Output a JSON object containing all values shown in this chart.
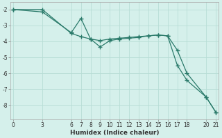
{
  "xlabel": "Humidex (Indice chaleur)",
  "bg_color": "#d5f0eb",
  "line_color": "#2a7a6a",
  "grid_color": "#b8ddd6",
  "line1_x": [
    0,
    3,
    6,
    7,
    8,
    9,
    10,
    11,
    12,
    13,
    14,
    15,
    16,
    17,
    18,
    20,
    21
  ],
  "line1_y": [
    -2.0,
    -2.0,
    -3.5,
    -3.7,
    -3.85,
    -3.95,
    -3.85,
    -3.8,
    -3.75,
    -3.7,
    -3.65,
    -3.6,
    -3.65,
    -4.55,
    -6.0,
    -7.5,
    -8.45
  ],
  "line2_x": [
    0,
    3,
    6,
    7,
    8,
    9,
    10,
    11,
    12,
    13,
    14,
    15,
    16,
    17,
    18,
    20,
    21
  ],
  "line2_y": [
    -2.0,
    -2.15,
    -3.45,
    -2.55,
    -3.85,
    -4.35,
    -3.95,
    -3.85,
    -3.8,
    -3.75,
    -3.65,
    -3.6,
    -3.65,
    -5.5,
    -6.45,
    -7.5,
    -8.45
  ],
  "xlim": [
    -0.3,
    21.3
  ],
  "ylim": [
    -8.9,
    -1.55
  ],
  "yticks": [
    -2,
    -3,
    -4,
    -5,
    -6,
    -7,
    -8
  ],
  "xticks": [
    0,
    3,
    6,
    7,
    8,
    9,
    10,
    11,
    12,
    13,
    14,
    15,
    16,
    17,
    18,
    20,
    21
  ],
  "marker": "+",
  "markersize": 4,
  "linewidth": 0.9,
  "tick_fontsize": 5.5,
  "xlabel_fontsize": 6.5
}
